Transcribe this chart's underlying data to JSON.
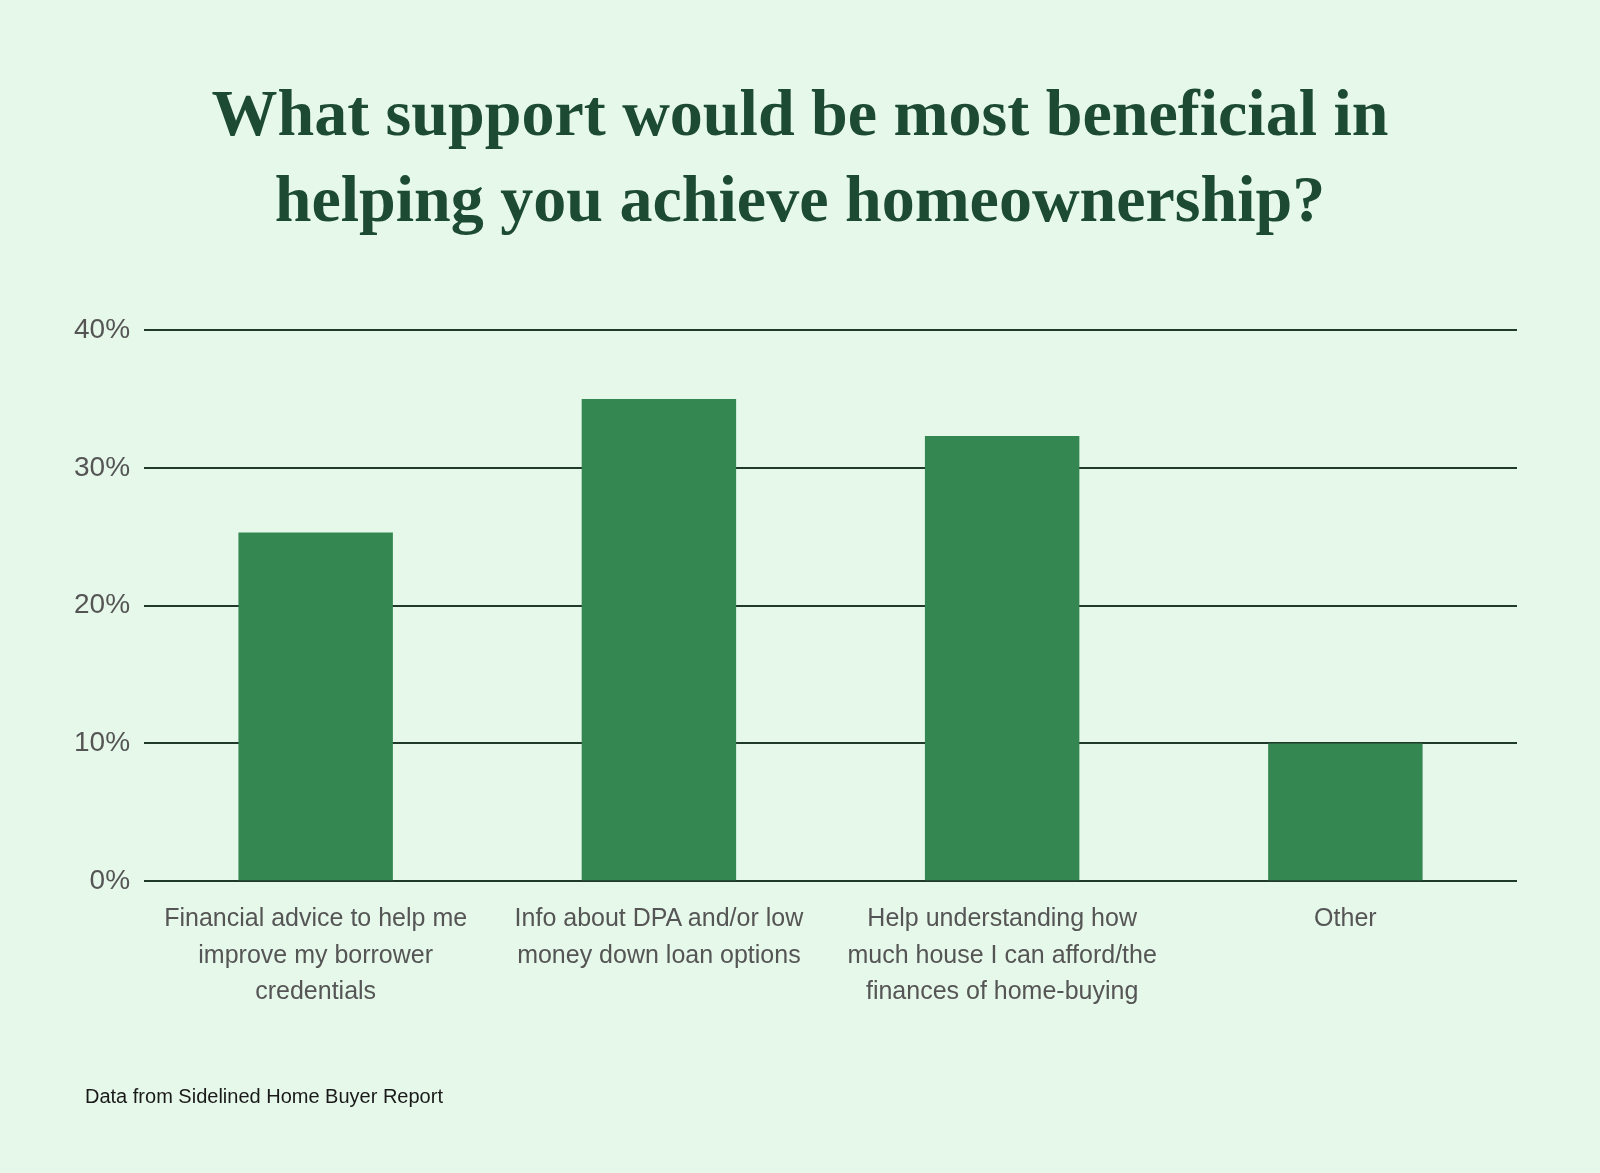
{
  "chart_data": {
    "type": "bar",
    "title": "What support would be most beneficial in helping you achieve homeownership?",
    "categories": [
      "Financial advice to help me improve my borrower credentials",
      "Info about DPA and/or low money down loan options",
      "Help understanding how much house I can afford/the finances of home-buying",
      "Other"
    ],
    "values": [
      25.3,
      35,
      32.3,
      10
    ],
    "color": "#358751",
    "ylim": [
      0,
      40
    ],
    "yticks": [
      {
        "value": 0,
        "label": "0%"
      },
      {
        "value": 10,
        "label": "10%"
      },
      {
        "value": 20,
        "label": "20%"
      },
      {
        "value": 30,
        "label": "30%"
      },
      {
        "value": 40,
        "label": "40%"
      }
    ],
    "grid": "y",
    "legend": false,
    "annotations": [
      "Data from Sidelined Home Buyer Report"
    ]
  }
}
